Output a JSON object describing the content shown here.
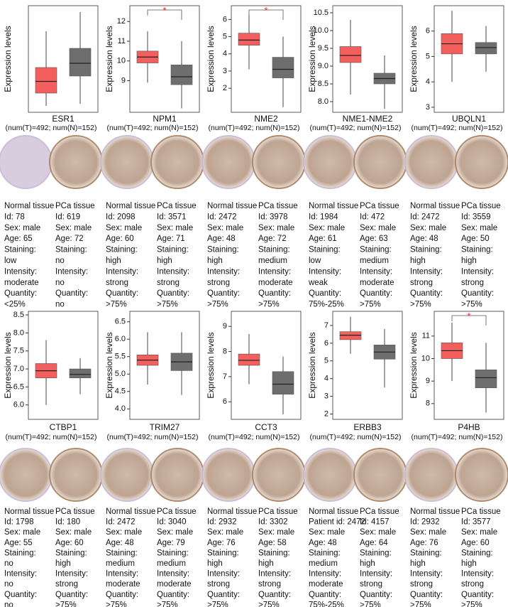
{
  "chart_data": [
    {
      "type": "box",
      "y_label": "Expression levels",
      "x_label": "ESR1",
      "n_label": "(num(T)=492; num(N)=152)",
      "ylim": [
        0,
        5
      ],
      "yticks": [],
      "boxes": [
        {
          "color": "#f25f5c",
          "q1": 0.9,
          "median": 1.45,
          "q3": 2.1,
          "low": 0.3,
          "high": 3.8
        },
        {
          "color": "#6e6e6e",
          "q1": 1.7,
          "median": 2.3,
          "q3": 3.0,
          "low": 0.4,
          "high": 4.7
        }
      ]
    },
    {
      "type": "box",
      "y_label": "Expression levels",
      "x_label": "NPM1",
      "n_label": "(num(T)=492; num(N)=152)",
      "significance": "*",
      "ylim": [
        7.4,
        12.8
      ],
      "yticks": [
        9,
        10,
        11,
        12
      ],
      "boxes": [
        {
          "color": "#f25f5c",
          "q1": 9.9,
          "median": 10.2,
          "q3": 10.5,
          "low": 8.9,
          "high": 11.5
        },
        {
          "color": "#6e6e6e",
          "q1": 8.8,
          "median": 9.2,
          "q3": 9.8,
          "low": 7.6,
          "high": 11.0
        }
      ]
    },
    {
      "type": "box",
      "y_label": "Expression levels",
      "x_label": "NME2",
      "n_label": "(num(T)=492; num(N)=152)",
      "significance": "*",
      "ylim": [
        0.6,
        6.8
      ],
      "yticks": [
        2,
        3,
        4,
        5,
        6
      ],
      "boxes": [
        {
          "color": "#f25f5c",
          "q1": 4.5,
          "median": 4.8,
          "q3": 5.2,
          "low": 3.1,
          "high": 6.3
        },
        {
          "color": "#6e6e6e",
          "q1": 2.6,
          "median": 3.1,
          "q3": 3.8,
          "low": 0.9,
          "high": 5.0
        }
      ]
    },
    {
      "type": "box",
      "y_label": "Expression levels",
      "x_label": "NME1-NME2",
      "n_label": "(num(T)=492; num(N)=152)",
      "ylim": [
        7.7,
        10.7
      ],
      "yticks": [
        {
          "value": 8,
          "label": "8.0"
        },
        8.5,
        {
          "value": 9,
          "label": "9.0"
        },
        9.5,
        {
          "value": 10,
          "label": "10.0"
        },
        10.5
      ],
      "boxes": [
        {
          "color": "#f25f5c",
          "q1": 9.1,
          "median": 9.3,
          "q3": 9.55,
          "low": 8.2,
          "high": 10.3
        },
        {
          "color": "#6e6e6e",
          "q1": 8.5,
          "median": 8.65,
          "q3": 8.8,
          "low": 7.8,
          "high": 9.3
        }
      ]
    },
    {
      "type": "box",
      "y_label": "Expression levels",
      "x_label": "UBQLN1",
      "n_label": "(num(T)=492; num(N)=152)",
      "ylim": [
        2.8,
        7.0
      ],
      "yticks": [
        3,
        4,
        5,
        6
      ],
      "boxes": [
        {
          "color": "#f25f5c",
          "q1": 5.1,
          "median": 5.5,
          "q3": 5.9,
          "low": 4.0,
          "high": 6.8
        },
        {
          "color": "#6e6e6e",
          "q1": 5.1,
          "median": 5.35,
          "q3": 5.55,
          "low": 4.4,
          "high": 6.2
        }
      ]
    },
    {
      "type": "box",
      "y_label": "Expression levels",
      "x_label": "CTBP1",
      "n_label": "(num(T)=492; num(N)=152)",
      "ylim": [
        5.6,
        8.6
      ],
      "yticks": [
        {
          "value": 6,
          "label": "6.0"
        },
        6.5,
        {
          "value": 7,
          "label": "7.0"
        },
        7.5,
        {
          "value": 8,
          "label": "8.0"
        },
        8.5
      ],
      "boxes": [
        {
          "color": "#f25f5c",
          "q1": 6.75,
          "median": 6.95,
          "q3": 7.15,
          "low": 6.0,
          "high": 7.8
        },
        {
          "color": "#6e6e6e",
          "q1": 6.75,
          "median": 6.85,
          "q3": 7.0,
          "low": 6.3,
          "high": 7.3
        }
      ]
    },
    {
      "type": "box",
      "y_label": "Expression levels",
      "x_label": "TRIM27",
      "n_label": "(num(T)=492; num(N)=152)",
      "ylim": [
        3.7,
        6.8
      ],
      "yticks": [
        {
          "value": 4,
          "label": "4.0"
        },
        4.5,
        {
          "value": 5,
          "label": "5.0"
        },
        5.5,
        {
          "value": 6,
          "label": "6.0"
        },
        6.5
      ],
      "boxes": [
        {
          "color": "#f25f5c",
          "q1": 5.25,
          "median": 5.4,
          "q3": 5.55,
          "low": 4.7,
          "high": 6.2
        },
        {
          "color": "#6e6e6e",
          "q1": 5.1,
          "median": 5.35,
          "q3": 5.6,
          "low": 4.4,
          "high": 6.2
        }
      ]
    },
    {
      "type": "box",
      "y_label": "Expression levels",
      "x_label": "CCT3",
      "n_label": "(num(T)=492; num(N)=152)",
      "ylim": [
        5.3,
        9.6
      ],
      "yticks": [
        6,
        7,
        8,
        9
      ],
      "boxes": [
        {
          "color": "#f25f5c",
          "q1": 7.45,
          "median": 7.65,
          "q3": 7.9,
          "low": 6.7,
          "high": 8.7
        },
        {
          "color": "#6e6e6e",
          "q1": 6.3,
          "median": 6.7,
          "q3": 7.2,
          "low": 5.5,
          "high": 7.8
        }
      ]
    },
    {
      "type": "box",
      "y_label": "Expression levels",
      "x_label": "ERBB3",
      "n_label": "(num(T)=492; num(N)=152)",
      "ylim": [
        1.7,
        7.8
      ],
      "yticks": [
        2,
        3,
        4,
        5,
        6,
        7
      ],
      "boxes": [
        {
          "color": "#f25f5c",
          "q1": 6.2,
          "median": 6.45,
          "q3": 6.65,
          "low": 5.4,
          "high": 7.5
        },
        {
          "color": "#6e6e6e",
          "q1": 5.1,
          "median": 5.5,
          "q3": 5.9,
          "low": 3.5,
          "high": 6.8
        }
      ]
    },
    {
      "type": "box",
      "y_label": "Expression levels",
      "x_label": "P4HB",
      "n_label": "(num(T)=492; num(N)=152)",
      "significance": "*",
      "ylim": [
        7.3,
        12.1
      ],
      "yticks": [
        8,
        9,
        10,
        11
      ],
      "boxes": [
        {
          "color": "#f25f5c",
          "q1": 10.0,
          "median": 10.35,
          "q3": 10.7,
          "low": 9.0,
          "high": 11.6
        },
        {
          "color": "#6e6e6e",
          "q1": 8.7,
          "median": 9.15,
          "q3": 9.5,
          "low": 7.6,
          "high": 10.7
        }
      ]
    }
  ],
  "samples": [
    {
      "normal": [
        "Normal tissue",
        "Id: 78",
        "Sex: male",
        "Age: 65",
        "Staining:",
        "low",
        "Intensity:",
        "moderate",
        "Quantity:",
        "<25%"
      ],
      "tumor": [
        "PCa tissue",
        "Id: 619",
        "Sex: male",
        "Age: 72",
        "Staining:",
        "no",
        "Intensity:",
        "no",
        "Quantity:",
        "no"
      ]
    },
    {
      "normal": [
        "Normal tissue",
        "Id: 2098",
        "Sex: male",
        "Age: 60",
        "Staining:",
        "high",
        "Intensity:",
        "strong",
        "Quantity:",
        ">75%"
      ],
      "tumor": [
        "PCa tissue",
        "Id: 3571",
        "Sex: male",
        "Age: 71",
        "Staining:",
        "high",
        "Intensity:",
        "strong",
        "Quantity:",
        ">75%"
      ]
    },
    {
      "normal": [
        "Normal tissue",
        "Id: 2472",
        "Sex: male",
        "Age: 48",
        "Staining:",
        "high",
        "Intensity:",
        "strong",
        "Quantity:",
        ">75%"
      ],
      "tumor": [
        "PCa tissue",
        "Id: 3978",
        "Sex: male",
        "Age: 72",
        "Staining:",
        "medium",
        "Intensity:",
        "moderate",
        "Quantity:",
        ">75%"
      ]
    },
    {
      "normal": [
        "Normal tissue",
        "Id: 1984",
        "Sex: male",
        "Age: 61",
        "Staining:",
        "low",
        "Intensity:",
        "weak",
        "Quantity:",
        "75%-25%"
      ],
      "tumor": [
        "PCa tissue",
        "Id: 472",
        "Sex: male",
        "Age: 63",
        "Staining:",
        "medium",
        "Intensity:",
        "moderate",
        "Quantity:",
        ">75%"
      ]
    },
    {
      "normal": [
        "Normal tissue",
        "Id: 2472",
        "Sex: male",
        "Age: 48",
        "Staining:",
        "high",
        "Intensity:",
        "strong",
        "Quantity:",
        ">75%"
      ],
      "tumor": [
        "PCa tissue",
        "Id: 3559",
        "Sex: male",
        "Age: 50",
        "Staining:",
        "high",
        "Intensity:",
        "strong",
        "Quantity:",
        ">75%"
      ]
    },
    {
      "normal": [
        "Normal tissue",
        "Id: 1798",
        "Sex: male",
        "Age: 55",
        "Staining:",
        "no",
        "Intensity:",
        "no",
        "Quantity:",
        "no"
      ],
      "tumor": [
        "PCa tissue",
        "Id: 180",
        "Sex: male",
        "Age: 60",
        "Staining:",
        "high",
        "Intensity:",
        "strong",
        "Quantity:",
        ">75%"
      ]
    },
    {
      "normal": [
        "Normal tissue",
        "Id: 2472",
        "Sex: male",
        "Age: 48",
        "Staining:",
        "medium",
        "Intensity:",
        "moderate",
        "Quantity:",
        ">75%"
      ],
      "tumor": [
        "PCa tissue",
        "Id: 3040",
        "Sex: male",
        "Age: 79",
        "Staining:",
        "medium",
        "Intensity:",
        "moderate",
        "Quantity:",
        ">75%"
      ]
    },
    {
      "normal": [
        "Normal tissue",
        "Id: 2932",
        "Sex: male",
        "Age: 76",
        "Staining:",
        "high",
        "Intensity:",
        "strong",
        "Quantity:",
        ">75%"
      ],
      "tumor": [
        "PCa tissue",
        "Id: 3302",
        "Sex: male",
        "Age: 58",
        "Staining:",
        "high",
        "Intensity:",
        "strong",
        "Quantity:",
        ">75%"
      ]
    },
    {
      "normal": [
        "Normal tissue",
        "Patient id: 2472",
        "Sex: male",
        "Age: 48",
        "Staining:",
        "medium",
        "Intensity:",
        "moderate",
        "Quantity:",
        "75%-25%"
      ],
      "tumor": [
        "PCa tissue",
        "Id: 4157",
        "Sex: male",
        "Age: 64",
        "Staining:",
        "high",
        "Intensity:",
        "strong",
        "Quantity:",
        ">75%"
      ]
    },
    {
      "normal": [
        "Normal tissue",
        "Id: 2932",
        "Sex: male",
        "Age: 76",
        "Staining:",
        "high",
        "Intensity:",
        "strong",
        "Quantity:",
        ">75%"
      ],
      "tumor": [
        "PCa tissue",
        "Id: 3577",
        "Sex: male",
        "Age: 60",
        "Staining:",
        "high",
        "Intensity:",
        "strong",
        "Quantity:",
        ">75%"
      ]
    }
  ]
}
